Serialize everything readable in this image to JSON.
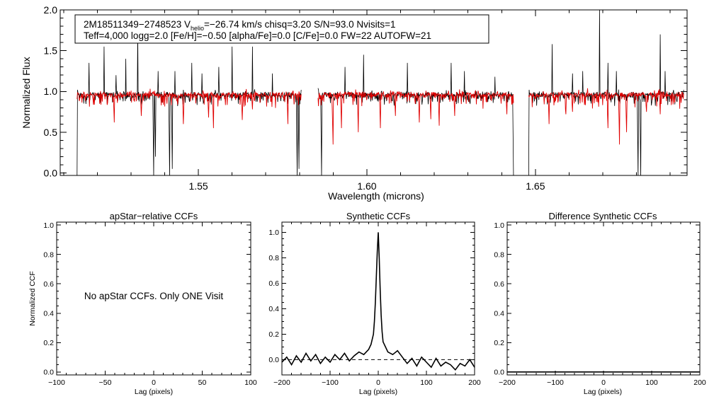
{
  "chart_data": [
    {
      "type": "line",
      "id": "spectrum",
      "annotation": {
        "line1_prefix": "2M18511349−2748523  V",
        "line1_sub": "helio",
        "line1_suffix": "=−26.74 km/s  chisq=3.20  S/N=93.0  Nvisits=1",
        "line2": "Teff=4,000 logg=2.0 [Fe/H]=−0.50 [alpha/Fe]=0.0 [C/Fe]=0.0 FW=22 AUTOFW=21"
      },
      "xlabel": "Wavelength (microns)",
      "ylabel": "Normalized Flux",
      "xlim": [
        1.509,
        1.695
      ],
      "ylim": [
        -0.03,
        2.0
      ],
      "xticks": [
        1.55,
        1.6,
        1.65
      ],
      "xtick_labels": [
        "1.55",
        "1.60",
        "1.65"
      ],
      "yticks": [
        0.0,
        0.5,
        1.0,
        1.5,
        2.0
      ],
      "ytick_labels": [
        "0.0",
        "0.5",
        "1.0",
        "1.5",
        "2.0"
      ],
      "chips": [
        [
          1.514,
          1.5805
        ],
        [
          1.5855,
          1.6435
        ],
        [
          1.648,
          1.694
        ]
      ],
      "continuum": 0.96,
      "series": [
        {
          "color": "#000000",
          "spikes": [
            [
              1.5175,
              1.35
            ],
            [
              1.522,
              1.55
            ],
            [
              1.5255,
              1.2
            ],
            [
              1.5285,
              1.4
            ],
            [
              1.532,
              1.75
            ],
            [
              1.538,
              1.25
            ],
            [
              1.543,
              1.25
            ],
            [
              1.548,
              1.35
            ],
            [
              1.551,
              1.22
            ],
            [
              1.556,
              1.3
            ],
            [
              1.56,
              1.55
            ],
            [
              1.566,
              1.55
            ],
            [
              1.572,
              1.22
            ],
            [
              1.584,
              1.2
            ],
            [
              1.5935,
              1.3
            ],
            [
              1.599,
              1.45
            ],
            [
              1.612,
              1.35
            ],
            [
              1.625,
              1.35
            ],
            [
              1.629,
              1.25
            ],
            [
              1.638,
              1.18
            ],
            [
              1.655,
              1.58
            ],
            [
              1.661,
              1.22
            ],
            [
              1.664,
              1.25
            ],
            [
              1.669,
              2.02
            ],
            [
              1.6715,
              1.35
            ],
            [
              1.674,
              1.25
            ],
            [
              1.687,
              1.7
            ],
            [
              1.6885,
              1.25
            ]
          ],
          "dips": [
            [
              1.514,
              -0.05
            ],
            [
              1.5367,
              -0.05
            ],
            [
              1.5372,
              0.2
            ],
            [
              1.5415,
              -0.05
            ],
            [
              1.5423,
              0.05
            ],
            [
              1.5793,
              -0.05
            ],
            [
              1.5798,
              0.05
            ],
            [
              1.5865,
              -0.05
            ],
            [
              1.6435,
              -0.05
            ],
            [
              1.648,
              -0.05
            ],
            [
              1.6805,
              -0.05
            ],
            [
              1.6813,
              -0.05
            ]
          ]
        },
        {
          "color": "#e00000",
          "dips": [
            [
              1.525,
              0.62
            ],
            [
              1.533,
              0.7
            ],
            [
              1.5455,
              0.6
            ],
            [
              1.553,
              0.68
            ],
            [
              1.5545,
              0.55
            ],
            [
              1.563,
              0.65
            ],
            [
              1.566,
              0.78
            ],
            [
              1.5765,
              0.6
            ],
            [
              1.59,
              0.35
            ],
            [
              1.5925,
              0.55
            ],
            [
              1.5975,
              0.5
            ],
            [
              1.604,
              0.55
            ],
            [
              1.6085,
              0.7
            ],
            [
              1.6155,
              0.62
            ],
            [
              1.619,
              0.66
            ],
            [
              1.6215,
              0.58
            ],
            [
              1.626,
              0.7
            ],
            [
              1.6415,
              0.72
            ],
            [
              1.654,
              0.6
            ],
            [
              1.659,
              0.72
            ],
            [
              1.661,
              0.75
            ],
            [
              1.6715,
              0.55
            ],
            [
              1.675,
              0.35
            ],
            [
              1.677,
              0.5
            ],
            [
              1.683,
              0.75
            ],
            [
              1.687,
              0.72
            ]
          ]
        }
      ]
    },
    {
      "type": "line",
      "id": "apstar",
      "title": "apStar−relative CCFs",
      "xlabel": "Lag (pixels)",
      "ylabel": "Normalized CCF",
      "message": "No apStar CCFs.  Only ONE Visit",
      "xlim": [
        -100,
        100
      ],
      "ylim": [
        -0.02,
        1.02
      ],
      "xticks": [
        -100,
        -50,
        0,
        50,
        100
      ],
      "xtick_labels": [
        "−100",
        "−50",
        "0",
        "50",
        "100"
      ],
      "yticks": [
        0.0,
        0.2,
        0.4,
        0.6,
        0.8,
        1.0
      ],
      "ytick_labels": [
        "0.0",
        "0.2",
        "0.4",
        "0.6",
        "0.8",
        "1.0"
      ]
    },
    {
      "type": "line",
      "id": "synthetic",
      "title": "Synthetic CCFs",
      "xlabel": "Lag (pixels)",
      "xlim": [
        -200,
        200
      ],
      "ylim": [
        -0.12,
        1.08
      ],
      "xticks": [
        -200,
        -100,
        0,
        100,
        200
      ],
      "xtick_labels": [
        "−200",
        "−100",
        "0",
        "100",
        "200"
      ],
      "yticks": [
        0.0,
        0.2,
        0.4,
        0.6,
        0.8,
        1.0
      ],
      "ytick_labels": [
        "0.0",
        "0.2",
        "0.4",
        "0.6",
        "0.8",
        "1.0"
      ],
      "reference_y": 0.0,
      "series": [
        {
          "color": "#000000",
          "x": [
            -200,
            -190,
            -180,
            -170,
            -160,
            -150,
            -140,
            -130,
            -120,
            -110,
            -100,
            -90,
            -80,
            -70,
            -60,
            -50,
            -40,
            -30,
            -20,
            -15,
            -10,
            -8,
            -6,
            -4,
            -2,
            0,
            2,
            4,
            6,
            8,
            10,
            15,
            20,
            30,
            40,
            50,
            60,
            70,
            80,
            90,
            100,
            110,
            120,
            130,
            140,
            150,
            160,
            170,
            180,
            190,
            200
          ],
          "y": [
            -0.02,
            0.02,
            -0.04,
            0.03,
            -0.02,
            0.05,
            -0.01,
            0.04,
            -0.03,
            0.02,
            -0.02,
            0.04,
            0.0,
            0.05,
            -0.01,
            0.03,
            0.06,
            0.04,
            0.08,
            0.12,
            0.2,
            0.3,
            0.45,
            0.65,
            0.85,
            1.0,
            0.8,
            0.55,
            0.35,
            0.22,
            0.14,
            0.1,
            0.06,
            0.04,
            0.07,
            0.02,
            -0.03,
            0.01,
            -0.05,
            0.02,
            -0.02,
            -0.06,
            0.01,
            -0.05,
            -0.02,
            -0.04,
            -0.08,
            -0.03,
            -0.05,
            0.0,
            -0.06
          ]
        }
      ]
    },
    {
      "type": "line",
      "id": "difference",
      "title": "Difference Synthetic CCFs",
      "xlabel": "Lag (pixels)",
      "xlim": [
        -200,
        200
      ],
      "ylim": [
        -0.02,
        1.02
      ],
      "xticks": [
        -200,
        -100,
        0,
        100,
        200
      ],
      "xtick_labels": [
        "−200",
        "−100",
        "0",
        "100",
        "200"
      ],
      "yticks": [
        0.0,
        0.2,
        0.4,
        0.6,
        0.8,
        1.0
      ],
      "ytick_labels": [
        "0.0",
        "0.2",
        "0.4",
        "0.6",
        "0.8",
        "1.0"
      ],
      "series": [
        {
          "color": "#000000",
          "x": [
            -200,
            200
          ],
          "y": [
            0.0,
            0.0
          ]
        }
      ]
    }
  ]
}
